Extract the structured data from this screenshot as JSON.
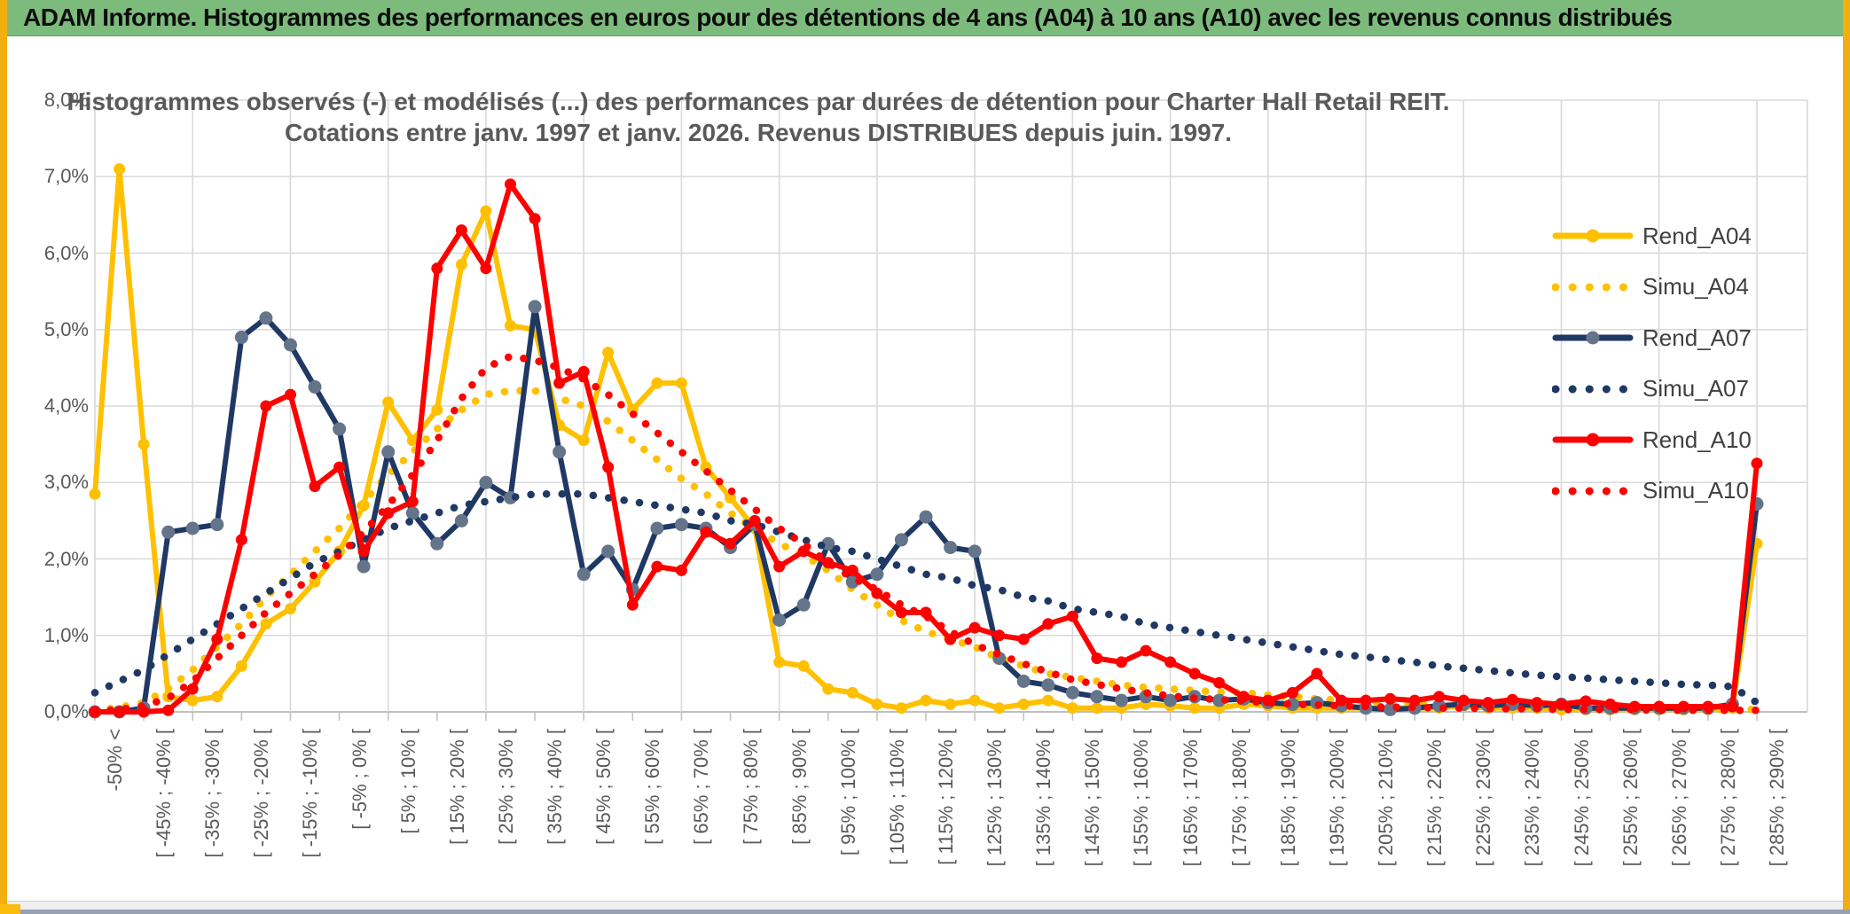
{
  "window": {
    "title": "ADAM Informe. Histogrammes des performances en euros pour des détentions de 4 ans (A04) à 10 ans (A10) avec les revenus connus distribués"
  },
  "ui_colors": {
    "titlebar_bg": "#7cbb7c",
    "edge_strip": "#f0ae10",
    "bottom_bar": "#95a0b1",
    "gridline": "#d9d9d9",
    "axis_line": "#bfbfbf",
    "text_gray": "#595959"
  },
  "chart_data": {
    "type": "line",
    "title_line1": "Histogrammes observés (-) et modélisés (...) des performances par durées de détention pour Charter Hall Retail REIT.",
    "title_line2": "Cotations entre janv. 1997 et janv. 2026. Revenus DISTRIBUES depuis juin. 1997.",
    "ylabel": "",
    "xlabel": "",
    "ylim": [
      0,
      8
    ],
    "grid": true,
    "legend_position": "right",
    "ytick_labels": [
      "0,0%",
      "1,0%",
      "2,0%",
      "3,0%",
      "4,0%",
      "5,0%",
      "6,0%",
      "7,0%",
      "8,0%"
    ],
    "n_points": 69,
    "xtick_every": 2,
    "xtick_labels": [
      "-50% <",
      "[ -45% ; -40% [",
      "[ -35% ; -30% [",
      "[ -25% ; -20% [",
      "[ -15% ; -10% [",
      "[ -5% ; 0% [",
      "[ 5% ; 10% [",
      "[ 15% ; 20% [",
      "[ 25% ; 30% [",
      "[ 35% ; 40% [",
      "[ 45% ; 50% [",
      "[ 55% ; 60% [",
      "[ 65% ; 70% [",
      "[ 75% ; 80% [",
      "[ 85% ; 90% [",
      "[ 95% ; 100% [",
      "[ 105% ; 110% [",
      "[ 115% ; 120% [",
      "[ 125% ; 130% [",
      "[ 135% ; 140% [",
      "[ 145% ; 150% [",
      "[ 155% ; 160% [",
      "[ 165% ; 170% [",
      "[ 175% ; 180% [",
      "[ 185% ; 190% [",
      "[ 195% ; 200% [",
      "[ 205% ; 210% [",
      "[ 215% ; 220% [",
      "[ 225% ; 230% [",
      "[ 235% ; 240% [",
      "[ 245% ; 250% [",
      "[ 255% ; 260% [",
      "[ 265% ; 270% [",
      "[ 275% ; 280% [",
      "[ 285% ; 290% ["
    ],
    "series": [
      {
        "name": "Rend_A04",
        "color": "#FFC000",
        "style": "solid",
        "markers": true,
        "values": [
          2.85,
          7.1,
          3.5,
          0.2,
          0.15,
          0.2,
          0.6,
          1.15,
          1.35,
          1.7,
          2.1,
          2.7,
          4.05,
          3.55,
          3.95,
          5.85,
          6.55,
          5.05,
          5.0,
          3.75,
          3.55,
          4.7,
          3.95,
          4.3,
          4.3,
          3.2,
          2.8,
          2.4,
          0.65,
          0.6,
          0.3,
          0.25,
          0.1,
          0.05,
          0.15,
          0.1,
          0.15,
          0.05,
          0.1,
          0.15,
          0.05,
          0.05,
          0.05,
          0.1,
          0.08,
          0.05,
          0.05,
          0.1,
          0.08,
          0.05,
          0.05,
          0.05,
          0.05,
          0.05,
          0.05,
          0.05,
          0.08,
          0.05,
          0.05,
          0.05,
          0.03,
          0.03,
          0.03,
          0.03,
          0.03,
          0.03,
          0.03,
          0.05,
          2.2
        ]
      },
      {
        "name": "Simu_A04",
        "color": "#FFC000",
        "style": "dotted",
        "markers": false,
        "values": [
          0.02,
          0.06,
          0.12,
          0.3,
          0.55,
          0.85,
          1.15,
          1.5,
          1.8,
          2.1,
          2.4,
          2.75,
          3.1,
          3.4,
          3.7,
          3.95,
          4.15,
          4.2,
          4.2,
          4.1,
          4.0,
          3.8,
          3.55,
          3.3,
          3.05,
          2.85,
          2.6,
          2.4,
          2.2,
          2.05,
          1.85,
          1.6,
          1.4,
          1.2,
          1.05,
          0.95,
          0.85,
          0.7,
          0.6,
          0.5,
          0.45,
          0.4,
          0.35,
          0.32,
          0.3,
          0.28,
          0.26,
          0.25,
          0.22,
          0.2,
          0.17,
          0.15,
          0.13,
          0.12,
          0.1,
          0.1,
          0.09,
          0.08,
          0.07,
          0.07,
          0.06,
          0.06,
          0.05,
          0.05,
          0.04,
          0.04,
          0.03,
          0.03,
          0.03
        ]
      },
      {
        "name": "Rend_A07",
        "color": "#1F3864",
        "style": "solid",
        "markers": true,
        "marker_color": "#64748b",
        "values": [
          0,
          0,
          0.05,
          2.35,
          2.4,
          2.45,
          4.9,
          5.15,
          4.8,
          4.25,
          3.7,
          1.9,
          3.4,
          2.6,
          2.2,
          2.5,
          3.0,
          2.8,
          5.3,
          3.4,
          1.8,
          2.1,
          1.6,
          2.4,
          2.45,
          2.4,
          2.15,
          2.45,
          1.2,
          1.4,
          2.2,
          1.7,
          1.8,
          2.25,
          2.55,
          2.15,
          2.1,
          0.7,
          0.4,
          0.35,
          0.25,
          0.2,
          0.15,
          0.2,
          0.15,
          0.2,
          0.15,
          0.17,
          0.12,
          0.1,
          0.12,
          0.08,
          0.05,
          0.03,
          0.05,
          0.08,
          0.1,
          0.08,
          0.1,
          0.08,
          0.1,
          0.05,
          0.05,
          0.05,
          0.05,
          0.05,
          0.05,
          0.1,
          2.72
        ]
      },
      {
        "name": "Simu_A07",
        "color": "#1F3864",
        "style": "dotted",
        "markers": false,
        "values": [
          0.25,
          0.4,
          0.55,
          0.75,
          0.95,
          1.15,
          1.35,
          1.55,
          1.75,
          1.95,
          2.1,
          2.25,
          2.4,
          2.5,
          2.6,
          2.7,
          2.75,
          2.8,
          2.85,
          2.85,
          2.85,
          2.8,
          2.75,
          2.7,
          2.65,
          2.6,
          2.5,
          2.45,
          2.35,
          2.25,
          2.15,
          2.1,
          2.0,
          1.9,
          1.8,
          1.75,
          1.65,
          1.6,
          1.5,
          1.45,
          1.35,
          1.3,
          1.25,
          1.15,
          1.1,
          1.05,
          1.0,
          0.95,
          0.9,
          0.85,
          0.8,
          0.75,
          0.72,
          0.68,
          0.65,
          0.6,
          0.57,
          0.54,
          0.51,
          0.48,
          0.46,
          0.44,
          0.42,
          0.4,
          0.38,
          0.36,
          0.35,
          0.33,
          0.12
        ]
      },
      {
        "name": "Rend_A10",
        "color": "#FF0000",
        "style": "solid",
        "markers": true,
        "values": [
          0,
          0,
          0,
          0.02,
          0.3,
          0.95,
          2.25,
          4.0,
          4.15,
          2.95,
          3.2,
          2.1,
          2.6,
          2.75,
          5.8,
          6.3,
          5.8,
          6.9,
          6.45,
          4.3,
          4.45,
          3.2,
          1.4,
          1.9,
          1.85,
          2.35,
          2.2,
          2.5,
          1.9,
          2.1,
          1.95,
          1.85,
          1.55,
          1.3,
          1.3,
          0.95,
          1.1,
          1.0,
          0.95,
          1.15,
          1.25,
          0.7,
          0.65,
          0.8,
          0.65,
          0.5,
          0.38,
          0.2,
          0.15,
          0.25,
          0.5,
          0.15,
          0.15,
          0.17,
          0.15,
          0.2,
          0.15,
          0.12,
          0.16,
          0.12,
          0.1,
          0.14,
          0.1,
          0.07,
          0.07,
          0.07,
          0.07,
          0.07,
          3.25
        ]
      },
      {
        "name": "Simu_A10",
        "color": "#FF0000",
        "style": "dotted",
        "markers": false,
        "values": [
          0.01,
          0.03,
          0.08,
          0.18,
          0.4,
          0.7,
          1.0,
          1.3,
          1.55,
          1.8,
          2.05,
          2.35,
          2.7,
          3.1,
          3.55,
          4.1,
          4.5,
          4.65,
          4.6,
          4.5,
          4.35,
          4.15,
          3.9,
          3.65,
          3.4,
          3.15,
          2.9,
          2.65,
          2.4,
          2.2,
          1.95,
          1.75,
          1.6,
          1.4,
          1.25,
          1.05,
          0.88,
          0.75,
          0.63,
          0.52,
          0.42,
          0.36,
          0.3,
          0.25,
          0.21,
          0.18,
          0.16,
          0.14,
          0.12,
          0.1,
          0.09,
          0.08,
          0.07,
          0.06,
          0.06,
          0.05,
          0.05,
          0.04,
          0.04,
          0.04,
          0.03,
          0.03,
          0.03,
          0.03,
          0.02,
          0.02,
          0.02,
          0.02,
          0.02
        ]
      }
    ]
  }
}
